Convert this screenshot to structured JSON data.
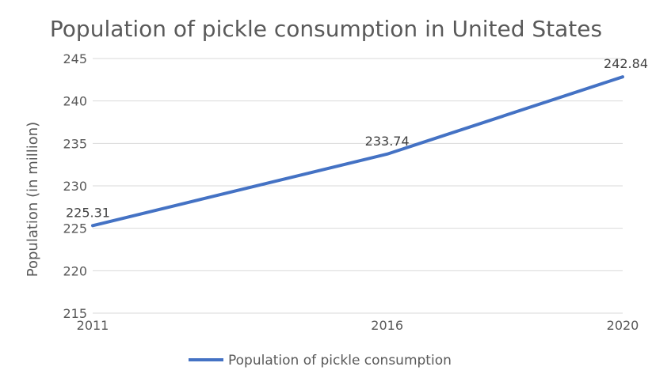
{
  "chart_data": {
    "type": "line",
    "title": "Population of pickle consumption in United States",
    "xlabel": "",
    "ylabel": "Population (in million)",
    "categories": [
      "2011",
      "2016",
      "2020"
    ],
    "x": [
      2011,
      2016,
      2020
    ],
    "ylim": [
      215,
      245
    ],
    "yticks": [
      215,
      220,
      225,
      230,
      235,
      240,
      245
    ],
    "grid": true,
    "legend_position": "bottom",
    "series": [
      {
        "name": "Population of pickle consumption",
        "values": [
          225.31,
          233.74,
          242.84
        ],
        "labels": [
          "225.31",
          "233.74",
          "242.84"
        ],
        "color": "#4472C4"
      }
    ]
  }
}
